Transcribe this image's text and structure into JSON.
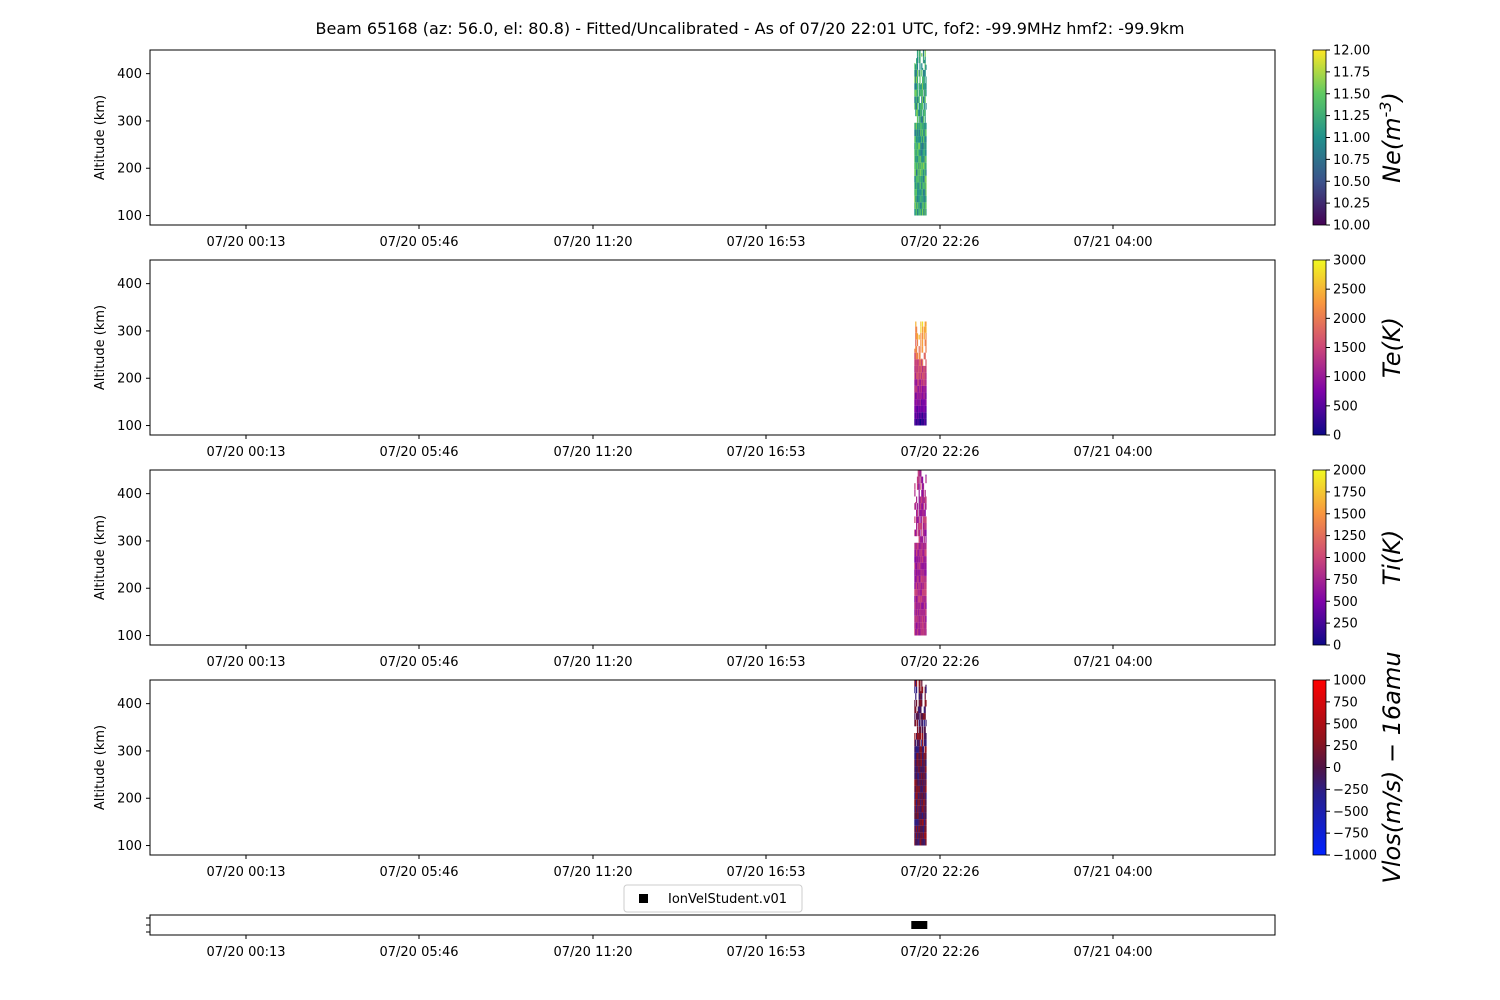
{
  "figure": {
    "title": "Beam 65168 (az: 56.0, el: 80.8) - Fitted/Uncalibrated - As of 07/20 22:01 UTC, fof2: -99.9MHz  hmf2: -99.9km"
  },
  "chart_data": [
    {
      "type": "heatmap",
      "panel": "ne",
      "ylabel": "Altitude (km)",
      "colorbar_label": "Ne(m^-3)",
      "colormap": "viridis",
      "clim": [
        10.0,
        12.0
      ],
      "colorbar_ticks": [
        "10.00",
        "10.25",
        "10.50",
        "10.75",
        "11.00",
        "11.25",
        "11.50",
        "11.75",
        "12.00"
      ],
      "y_ticks": [
        100,
        200,
        300,
        400
      ],
      "ylim": [
        80,
        450
      ],
      "x_ticks": [
        "07/20 00:13",
        "07/20 05:46",
        "07/20 11:20",
        "07/20 16:53",
        "07/20 22:26",
        "07/21 04:00"
      ],
      "data_time_span": [
        "07/20 21:38",
        "07/20 22:01"
      ],
      "data_alt_span": [
        100,
        450
      ],
      "typical_value": 11.2
    },
    {
      "type": "heatmap",
      "panel": "te",
      "ylabel": "Altitude (km)",
      "colorbar_label": "Te(K)",
      "colormap": "plasma",
      "clim": [
        0,
        3000
      ],
      "colorbar_ticks": [
        "0",
        "500",
        "1000",
        "1500",
        "2000",
        "2500",
        "3000"
      ],
      "y_ticks": [
        100,
        200,
        300,
        400
      ],
      "ylim": [
        80,
        450
      ],
      "x_ticks": [
        "07/20 00:13",
        "07/20 05:46",
        "07/20 11:20",
        "07/20 16:53",
        "07/20 22:26",
        "07/21 04:00"
      ],
      "data_time_span": [
        "07/20 21:38",
        "07/20 22:01"
      ],
      "data_alt_span": [
        100,
        320
      ],
      "typical_value": 1700
    },
    {
      "type": "heatmap",
      "panel": "ti",
      "ylabel": "Altitude (km)",
      "colorbar_label": "Ti(K)",
      "colormap": "plasma",
      "clim": [
        0,
        2000
      ],
      "colorbar_ticks": [
        "0",
        "250",
        "500",
        "750",
        "1000",
        "1250",
        "1500",
        "1750",
        "2000"
      ],
      "y_ticks": [
        100,
        200,
        300,
        400
      ],
      "ylim": [
        80,
        450
      ],
      "x_ticks": [
        "07/20 00:13",
        "07/20 05:46",
        "07/20 11:20",
        "07/20 16:53",
        "07/20 22:26",
        "07/21 04:00"
      ],
      "data_time_span": [
        "07/20 21:38",
        "07/20 22:01"
      ],
      "data_alt_span": [
        100,
        450
      ],
      "typical_value": 800
    },
    {
      "type": "heatmap",
      "panel": "vlos",
      "ylabel": "Altitude (km)",
      "colorbar_label": "Vlos(m/s) - 16amu",
      "colormap": "red-blue diverging",
      "clim": [
        -1000,
        1000
      ],
      "colorbar_ticks": [
        "−1000",
        "−750",
        "−500",
        "−250",
        "0",
        "250",
        "500",
        "750",
        "1000"
      ],
      "y_ticks": [
        100,
        200,
        300,
        400
      ],
      "ylim": [
        80,
        450
      ],
      "x_ticks": [
        "07/20 00:13",
        "07/20 05:46",
        "07/20 11:20",
        "07/20 16:53",
        "07/20 22:26",
        "07/21 04:00"
      ],
      "data_time_span": [
        "07/20 21:38",
        "07/20 22:01"
      ],
      "data_alt_span": [
        100,
        450
      ],
      "typical_value": 50
    },
    {
      "type": "scatter",
      "panel": "mode",
      "legend": [
        "IonVelStudent.v01"
      ],
      "legend_position": "top-center",
      "marker": "square",
      "x_ticks": [
        "07/20 00:13",
        "07/20 05:46",
        "07/20 11:20",
        "07/20 16:53",
        "07/20 22:26",
        "07/21 04:00"
      ],
      "data_time_span": [
        "07/20 21:38",
        "07/20 22:01"
      ]
    }
  ]
}
